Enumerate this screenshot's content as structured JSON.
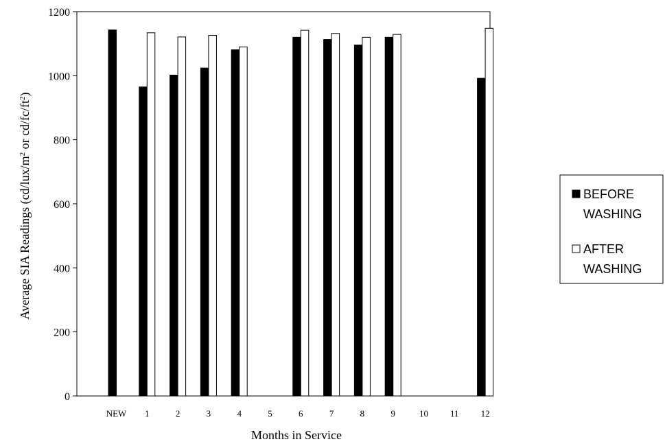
{
  "chart_data": {
    "type": "bar",
    "categories": [
      "NEW",
      "1",
      "2",
      "3",
      "4",
      "5",
      "6",
      "7",
      "8",
      "9",
      "10",
      "11",
      "12"
    ],
    "series": [
      {
        "name": "BEFORE WASHING",
        "color": "#000000",
        "values": [
          1143,
          965,
          1002,
          1024,
          1081,
          null,
          1120,
          1113,
          1096,
          1120,
          null,
          null,
          992
        ]
      },
      {
        "name": "AFTER WASHING",
        "color": "#ffffff",
        "values": [
          null,
          1134,
          1121,
          1126,
          1090,
          null,
          1142,
          1132,
          1120,
          1129,
          null,
          null,
          1148
        ]
      }
    ],
    "xlabel": "Months in Service",
    "ylabel": {
      "base": "Average SIA Readings (cd/lux/m",
      "sup1": "2",
      "mid": " or cd/fc/ft",
      "sup2": "2",
      "end": ")"
    },
    "ylim": [
      0,
      1200
    ],
    "yticks": [
      0,
      200,
      400,
      600,
      800,
      1000,
      1200
    ],
    "grid": false,
    "legend": {
      "placement": "right",
      "entries": [
        {
          "line1": "BEFORE",
          "line2": "WASHING",
          "color": "#000000"
        },
        {
          "line1": "AFTER",
          "line2": "WASHING",
          "color": "#ffffff"
        }
      ]
    }
  }
}
